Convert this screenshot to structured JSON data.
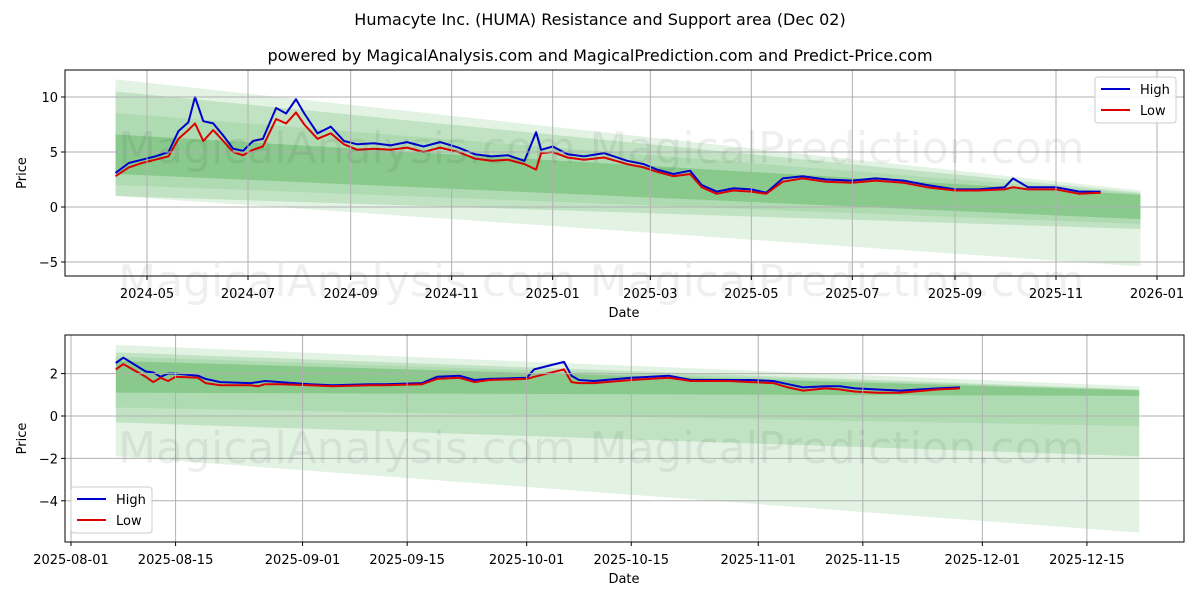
{
  "header": {
    "title": "Humacyte Inc. (HUMA) Resistance and Support area (Dec 02)",
    "subtitle": "powered by MagicalAnalysis.com and MagicalPrediction.com and Predict-Price.com"
  },
  "watermarks": [
    "MagicalAnalysis.com",
    "MagicalPrediction.com"
  ],
  "colors": {
    "high": "#0000cc",
    "low": "#dd0000",
    "band": "#4caf50",
    "grid": "#b0b0b0"
  },
  "chart_data": [
    {
      "type": "line",
      "title": "Humacyte Inc. (HUMA) Resistance and Support area (Dec 02)",
      "xlabel": "Date",
      "ylabel": "Price",
      "ylim": [
        -6.3,
        12.5
      ],
      "yticks": [
        -5,
        0,
        5,
        10
      ],
      "xticks": [
        "2024-05",
        "2024-07",
        "2024-09",
        "2024-11",
        "2025-01",
        "2025-03",
        "2025-05",
        "2025-07",
        "2025-09",
        "2025-11",
        "2026-01"
      ],
      "grid": true,
      "legend_position": "upper right",
      "legend": [
        "High",
        "Low"
      ],
      "x": [
        "2024-04-12",
        "2024-04-20",
        "2024-04-28",
        "2024-05-06",
        "2024-05-14",
        "2024-05-20",
        "2024-05-26",
        "2024-05-30",
        "2024-06-04",
        "2024-06-10",
        "2024-06-16",
        "2024-06-22",
        "2024-06-28",
        "2024-07-04",
        "2024-07-10",
        "2024-07-18",
        "2024-07-24",
        "2024-07-30",
        "2024-08-04",
        "2024-08-12",
        "2024-08-20",
        "2024-08-28",
        "2024-09-05",
        "2024-09-15",
        "2024-09-25",
        "2024-10-05",
        "2024-10-15",
        "2024-10-25",
        "2024-11-05",
        "2024-11-15",
        "2024-11-25",
        "2024-12-05",
        "2024-12-15",
        "2024-12-22",
        "2024-12-25",
        "2025-01-01",
        "2025-01-10",
        "2025-01-20",
        "2025-02-01",
        "2025-02-15",
        "2025-02-25",
        "2025-03-05",
        "2025-03-15",
        "2025-03-25",
        "2025-04-01",
        "2025-04-10",
        "2025-04-20",
        "2025-05-01",
        "2025-05-10",
        "2025-05-20",
        "2025-06-01",
        "2025-06-15",
        "2025-07-01",
        "2025-07-15",
        "2025-08-01",
        "2025-08-15",
        "2025-09-01",
        "2025-09-15",
        "2025-10-01",
        "2025-10-06",
        "2025-10-15",
        "2025-11-01",
        "2025-11-15",
        "2025-11-28"
      ],
      "series": [
        {
          "name": "High",
          "values": [
            3.1,
            4.0,
            4.3,
            4.6,
            5.0,
            6.9,
            7.7,
            10.0,
            7.8,
            7.6,
            6.5,
            5.3,
            5.1,
            6.0,
            6.2,
            9.0,
            8.5,
            9.8,
            8.5,
            6.7,
            7.3,
            6.0,
            5.7,
            5.8,
            5.6,
            5.9,
            5.5,
            5.9,
            5.4,
            4.8,
            4.6,
            4.7,
            4.2,
            6.8,
            5.2,
            5.5,
            4.8,
            4.6,
            4.9,
            4.2,
            3.9,
            3.4,
            3.0,
            3.3,
            2.0,
            1.4,
            1.7,
            1.6,
            1.3,
            2.6,
            2.8,
            2.5,
            2.4,
            2.6,
            2.4,
            2.0,
            1.6,
            1.6,
            1.8,
            2.6,
            1.8,
            1.8,
            1.4,
            1.4
          ]
        },
        {
          "name": "Low",
          "values": [
            2.8,
            3.6,
            4.0,
            4.3,
            4.6,
            6.2,
            7.0,
            7.6,
            6.0,
            7.0,
            6.0,
            5.0,
            4.7,
            5.2,
            5.5,
            8.0,
            7.6,
            8.6,
            7.5,
            6.2,
            6.7,
            5.7,
            5.2,
            5.3,
            5.2,
            5.4,
            5.0,
            5.4,
            5.0,
            4.4,
            4.2,
            4.3,
            3.9,
            3.4,
            4.9,
            5.0,
            4.5,
            4.3,
            4.5,
            3.9,
            3.6,
            3.2,
            2.8,
            3.0,
            1.8,
            1.2,
            1.5,
            1.4,
            1.2,
            2.3,
            2.6,
            2.3,
            2.2,
            2.4,
            2.2,
            1.8,
            1.5,
            1.5,
            1.6,
            1.8,
            1.6,
            1.6,
            1.2,
            1.3
          ]
        }
      ],
      "bands": {
        "start": "2024-04-12",
        "end": "2025-12-22",
        "outer_upper": [
          11.6,
          1.5
        ],
        "outer_lower": [
          1.0,
          -5.4
        ],
        "mid_upper": [
          10.5,
          1.3
        ],
        "mid_lower": [
          1.0,
          -2.0
        ],
        "inner_upper": [
          6.6,
          1.1
        ],
        "inner_lower": [
          3.0,
          -1.1
        ]
      }
    },
    {
      "type": "line",
      "xlabel": "Date",
      "ylabel": "Price",
      "ylim": [
        -5.9,
        3.8
      ],
      "yticks": [
        -4,
        -2,
        0,
        2
      ],
      "xticks": [
        "2025-08-01",
        "2025-08-15",
        "2025-09-01",
        "2025-09-15",
        "2025-10-01",
        "2025-10-15",
        "2025-11-01",
        "2025-11-15",
        "2025-12-01",
        "2025-12-15"
      ],
      "grid": true,
      "legend_position": "lower left",
      "legend": [
        "High",
        "Low"
      ],
      "x": [
        "2025-08-07",
        "2025-08-08",
        "2025-08-11",
        "2025-08-12",
        "2025-08-13",
        "2025-08-14",
        "2025-08-15",
        "2025-08-18",
        "2025-08-19",
        "2025-08-21",
        "2025-08-25",
        "2025-08-26",
        "2025-08-27",
        "2025-08-29",
        "2025-09-02",
        "2025-09-05",
        "2025-09-10",
        "2025-09-12",
        "2025-09-17",
        "2025-09-19",
        "2025-09-22",
        "2025-09-24",
        "2025-09-26",
        "2025-10-01",
        "2025-10-02",
        "2025-10-06",
        "2025-10-07",
        "2025-10-08",
        "2025-10-10",
        "2025-10-15",
        "2025-10-20",
        "2025-10-23",
        "2025-10-28",
        "2025-10-31",
        "2025-11-03",
        "2025-11-05",
        "2025-11-07",
        "2025-11-10",
        "2025-11-12",
        "2025-11-13",
        "2025-11-14",
        "2025-11-17",
        "2025-11-20",
        "2025-11-25",
        "2025-11-28"
      ],
      "series": [
        {
          "name": "High",
          "values": [
            2.5,
            2.75,
            2.1,
            2.05,
            1.85,
            2.0,
            2.0,
            1.9,
            1.75,
            1.6,
            1.55,
            1.6,
            1.65,
            1.6,
            1.5,
            1.45,
            1.5,
            1.5,
            1.55,
            1.85,
            1.9,
            1.7,
            1.75,
            1.8,
            2.2,
            2.55,
            1.9,
            1.7,
            1.65,
            1.8,
            1.9,
            1.7,
            1.7,
            1.7,
            1.65,
            1.5,
            1.35,
            1.4,
            1.4,
            1.35,
            1.3,
            1.25,
            1.2,
            1.3,
            1.35
          ]
        },
        {
          "name": "Low",
          "values": [
            2.2,
            2.45,
            1.85,
            1.6,
            1.8,
            1.65,
            1.85,
            1.8,
            1.55,
            1.45,
            1.45,
            1.4,
            1.5,
            1.5,
            1.45,
            1.4,
            1.45,
            1.45,
            1.5,
            1.75,
            1.8,
            1.6,
            1.7,
            1.75,
            1.85,
            2.2,
            1.6,
            1.55,
            1.55,
            1.7,
            1.8,
            1.65,
            1.65,
            1.6,
            1.55,
            1.35,
            1.2,
            1.3,
            1.25,
            1.2,
            1.15,
            1.1,
            1.1,
            1.25,
            1.3
          ]
        }
      ],
      "bands": {
        "start": "2025-08-07",
        "end": "2025-12-22",
        "outer_upper": [
          3.35,
          1.4
        ],
        "outer_lower": [
          -1.9,
          -5.5
        ],
        "mid_upper": [
          3.0,
          1.25
        ],
        "mid_lower": [
          -0.3,
          -1.9
        ],
        "inner_upper": [
          2.6,
          1.2
        ],
        "inner_lower": [
          1.1,
          0.95
        ]
      }
    }
  ]
}
